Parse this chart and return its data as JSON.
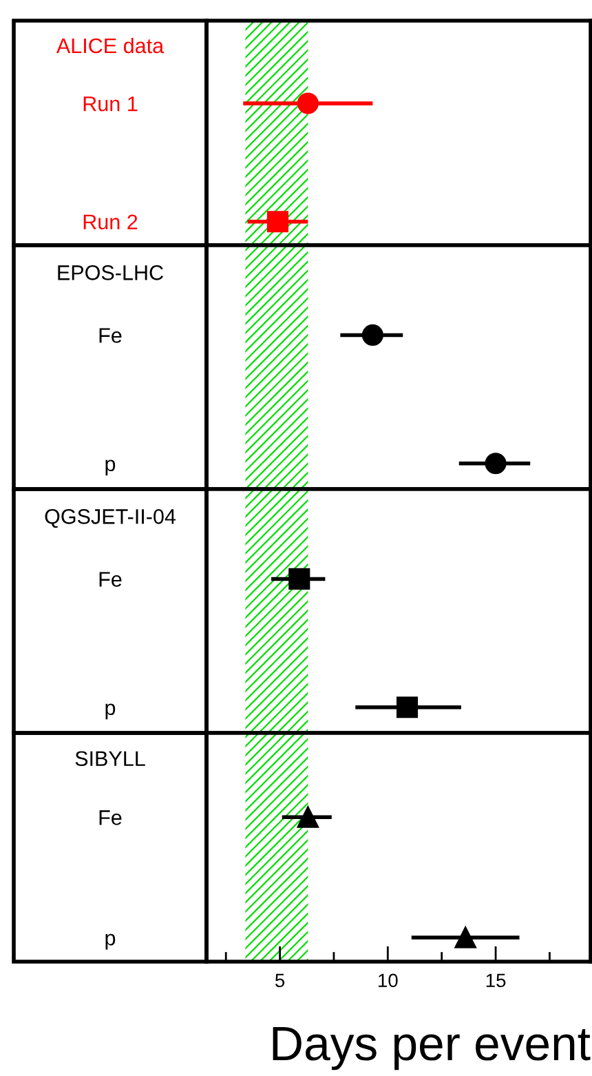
{
  "chart_data": [
    {
      "type": "scatter",
      "orientation": "horizontal",
      "title": "ALICE data",
      "categories": [
        "Run 1",
        "Run 2"
      ],
      "xlim": [
        1.6,
        19.4
      ],
      "tick_labels": "y",
      "bands": [
        {
          "axis": "x",
          "from": 3.4,
          "to": 6.3,
          "color": "#00dd00"
        }
      ],
      "series": [
        {
          "color": "#ff0000",
          "marker": "circle",
          "values": [
            6.3,
            null
          ],
          "errors": [
            [
              3.3,
              9.3
            ],
            null
          ]
        },
        {
          "color": "#ff0000",
          "marker": "square",
          "values": [
            null,
            4.9
          ],
          "errors": [
            null,
            [
              3.5,
              6.3
            ]
          ]
        }
      ]
    },
    {
      "type": "scatter",
      "orientation": "horizontal",
      "title": "EPOS-LHC",
      "categories": [
        "Fe",
        "p"
      ],
      "xlim": [
        1.6,
        19.4
      ],
      "tick_labels": "y",
      "bands": [
        {
          "axis": "x",
          "from": 3.4,
          "to": 6.3,
          "color": "#00dd00"
        }
      ],
      "series": [
        {
          "color": "#000000",
          "marker": "circle",
          "values": [
            9.3,
            null
          ],
          "errors": [
            [
              7.8,
              10.7
            ],
            null
          ]
        },
        {
          "color": "#000000",
          "marker": "circle",
          "values": [
            null,
            15.0
          ],
          "errors": [
            null,
            [
              13.3,
              16.6
            ]
          ]
        }
      ]
    },
    {
      "type": "scatter",
      "orientation": "horizontal",
      "title": "QGSJET-II-04",
      "categories": [
        "Fe",
        "p"
      ],
      "xlim": [
        1.6,
        19.4
      ],
      "tick_labels": "y",
      "bands": [
        {
          "axis": "x",
          "from": 3.4,
          "to": 6.3,
          "color": "#00dd00"
        }
      ],
      "series": [
        {
          "color": "#000000",
          "marker": "square",
          "values": [
            5.9,
            null
          ],
          "errors": [
            [
              4.6,
              7.1
            ],
            null
          ]
        },
        {
          "color": "#000000",
          "marker": "square",
          "values": [
            null,
            10.9
          ],
          "errors": [
            null,
            [
              8.5,
              13.4
            ]
          ]
        }
      ]
    },
    {
      "type": "scatter",
      "orientation": "horizontal",
      "title": "SIBYLL",
      "categories": [
        "Fe",
        "p"
      ],
      "xlim": [
        1.6,
        19.4
      ],
      "xticks": [
        {
          "value": 2.5,
          "label": null
        },
        5,
        {
          "value": 7.5,
          "label": null
        },
        10,
        {
          "value": 12.5,
          "label": null
        },
        15,
        {
          "value": 17.5,
          "label": null
        }
      ],
      "xlabel": "Days per event",
      "bands": [
        {
          "axis": "x",
          "from": 3.4,
          "to": 6.3,
          "color": "#00dd00"
        }
      ],
      "series": [
        {
          "color": "#000000",
          "marker": "triangle",
          "values": [
            6.3,
            null
          ],
          "errors": [
            [
              5.1,
              7.4
            ],
            null
          ]
        },
        {
          "color": "#000000",
          "marker": "triangle",
          "values": [
            null,
            13.6
          ],
          "errors": [
            null,
            [
              11.1,
              16.1
            ]
          ]
        }
      ]
    }
  ]
}
